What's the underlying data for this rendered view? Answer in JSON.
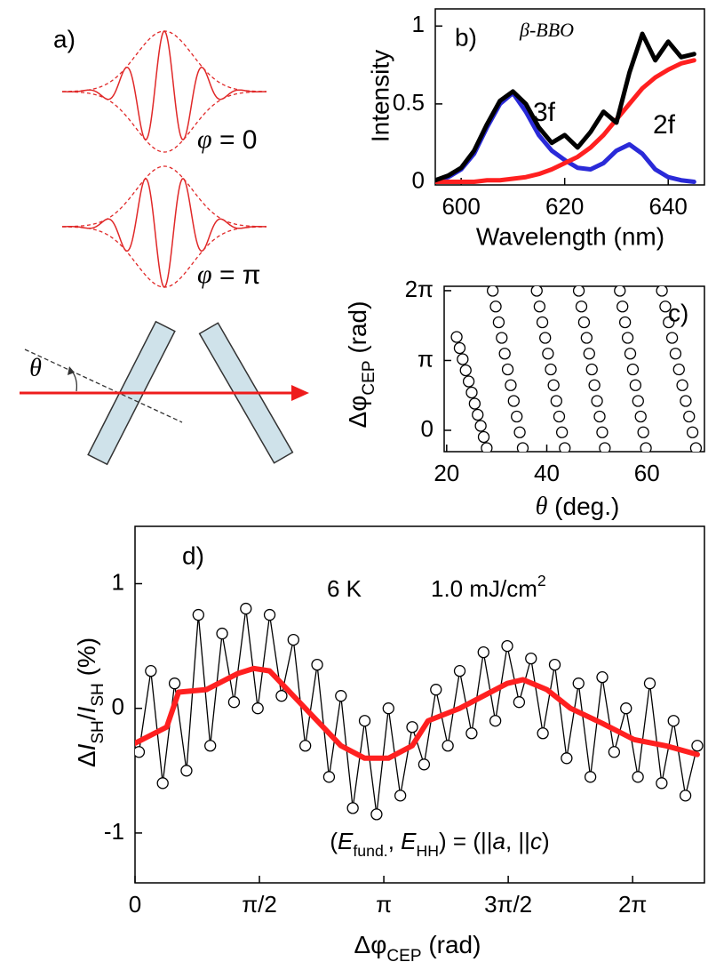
{
  "panel_a": {
    "label": "a)",
    "phase_labels": [
      [
        "φ",
        " = 0"
      ],
      [
        "φ",
        " = π"
      ]
    ],
    "angle_label": "θ"
  },
  "chart_data": [
    {
      "type": "line",
      "panel_label": "b)",
      "annotation": "β-BBO",
      "ylabel": "Intensity",
      "xlabel": "Wavelength (nm)",
      "xlim": [
        595,
        647
      ],
      "ylim": [
        -0.02,
        1.11
      ],
      "xticks": [
        600,
        620,
        640
      ],
      "yticks": [
        0,
        0.5,
        1
      ],
      "x": [
        595,
        597.5,
        600,
        602.5,
        605,
        607.5,
        610,
        612.5,
        615,
        617.5,
        620,
        622.5,
        625,
        627.5,
        630,
        632.5,
        635,
        637.5,
        640,
        642.5,
        645
      ],
      "series": [
        {
          "name": "3f",
          "color": "#2a2ad8",
          "values": [
            0.01,
            0.03,
            0.08,
            0.18,
            0.35,
            0.5,
            0.57,
            0.45,
            0.3,
            0.2,
            0.14,
            0.09,
            0.08,
            0.12,
            0.2,
            0.24,
            0.18,
            0.08,
            0.03,
            0.01,
            0
          ]
        },
        {
          "name": "2f",
          "color": "#ff2020",
          "values": [
            0,
            0,
            0,
            0,
            0.01,
            0.01,
            0.02,
            0.03,
            0.05,
            0.08,
            0.12,
            0.16,
            0.22,
            0.3,
            0.4,
            0.5,
            0.6,
            0.67,
            0.72,
            0.76,
            0.78
          ]
        },
        {
          "color": "#000000",
          "values": [
            0.01,
            0.04,
            0.09,
            0.2,
            0.37,
            0.52,
            0.58,
            0.5,
            0.35,
            0.25,
            0.3,
            0.22,
            0.32,
            0.45,
            0.38,
            0.7,
            0.95,
            0.78,
            0.9,
            0.8,
            0.82
          ]
        }
      ]
    },
    {
      "type": "scatter",
      "panel_label": "c)",
      "xlabel": [
        "θ",
        " (deg.)"
      ],
      "ylabel": [
        "Δφ",
        "CEP",
        " (rad)"
      ],
      "xlim": [
        19.5,
        71.5
      ],
      "ylim": [
        -0.96,
        6.48
      ],
      "xticks": [
        20,
        40,
        60
      ],
      "yticks": [
        0,
        {
          "value": 3.1416,
          "label": "π"
        },
        {
          "value": 6.2832,
          "label": "2π"
        }
      ],
      "series": [
        {
          "color": "#000000",
          "x": [
            22,
            22.6,
            23.2,
            23.8,
            24.4,
            25,
            25.6,
            26.2,
            26.8,
            27.4,
            28,
            29.2,
            29.8,
            30.4,
            31,
            31.6,
            32.2,
            32.8,
            33.4,
            34,
            34.6,
            35.2,
            38,
            38.56,
            39.12,
            39.68,
            40.24,
            40.8,
            41.36,
            41.92,
            42.48,
            43.04,
            43.6,
            46.4,
            46.92,
            47.44,
            47.96,
            48.48,
            49,
            49.52,
            50.04,
            50.56,
            51.08,
            51.6,
            54.6,
            55.12,
            55.64,
            56.16,
            56.68,
            57.2,
            57.72,
            58.24,
            58.76,
            59.28,
            59.8,
            63,
            63.68,
            64.36,
            65.04,
            65.72,
            66.4,
            67.08,
            67.76,
            68.44,
            69.12,
            69.8
          ],
          "values": [
            4.2,
            3.7,
            3.2,
            2.7,
            2.2,
            1.7,
            1.2,
            0.7,
            0.2,
            -0.3,
            -0.8,
            6.28,
            5.57,
            4.86,
            4.16,
            3.45,
            2.74,
            2.03,
            1.32,
            0.62,
            -0.09,
            -0.8,
            6.28,
            5.57,
            4.86,
            4.16,
            3.45,
            2.74,
            2.03,
            1.32,
            0.62,
            -0.09,
            -0.8,
            6.28,
            5.57,
            4.86,
            4.16,
            3.45,
            2.74,
            2.03,
            1.32,
            0.62,
            -0.09,
            -0.8,
            6.28,
            5.57,
            4.86,
            4.16,
            3.45,
            2.74,
            2.03,
            1.32,
            0.62,
            -0.09,
            -0.8,
            6.28,
            5.57,
            4.86,
            4.16,
            3.45,
            2.74,
            2.03,
            1.32,
            0.62,
            -0.09,
            -0.8
          ]
        }
      ]
    },
    {
      "type": "line",
      "panel_label": "d)",
      "temperature": "6 K",
      "fluence": [
        "1.0 mJ/cm",
        "2"
      ],
      "annotation": [
        "(",
        "E",
        "fund.",
        ", ",
        "E",
        "HH",
        ") = (||",
        "a",
        ", ||",
        "c",
        ")"
      ],
      "xlabel": [
        "Δφ",
        "CEP",
        " (rad)"
      ],
      "ylabel": [
        "Δ",
        "I",
        "SH",
        "/",
        "I",
        "SH",
        " (%)"
      ],
      "xlim": [
        0,
        7.19
      ],
      "ylim": [
        -1.4,
        1.46
      ],
      "xticks": [
        0,
        {
          "value": 1.5708,
          "label": "π/2"
        },
        {
          "value": 3.1416,
          "label": "π"
        },
        {
          "value": 4.7124,
          "label": "3π/2"
        },
        {
          "value": 6.2832,
          "label": "2π"
        }
      ],
      "yticks": [
        -1,
        0,
        1
      ],
      "series": [
        {
          "color": "#000000",
          "marker": "circle",
          "x": [
            0.05,
            0.2,
            0.35,
            0.5,
            0.65,
            0.8,
            0.95,
            1.1,
            1.25,
            1.4,
            1.55,
            1.7,
            1.85,
            2,
            2.15,
            2.3,
            2.45,
            2.6,
            2.75,
            2.9,
            3.05,
            3.2,
            3.35,
            3.5,
            3.65,
            3.8,
            3.95,
            4.1,
            4.25,
            4.4,
            4.55,
            4.7,
            4.85,
            5,
            5.15,
            5.3,
            5.45,
            5.6,
            5.75,
            5.9,
            6.05,
            6.2,
            6.35,
            6.5,
            6.65,
            6.8,
            6.95,
            7.1
          ],
          "values": [
            -0.35,
            0.3,
            -0.6,
            0.2,
            -0.5,
            0.75,
            -0.3,
            0.6,
            0.05,
            0.8,
            0.0,
            0.75,
            0.1,
            0.55,
            -0.3,
            0.35,
            -0.55,
            0.1,
            -0.8,
            -0.1,
            -0.85,
            0.0,
            -0.7,
            -0.15,
            -0.45,
            0.15,
            -0.3,
            0.3,
            -0.2,
            0.45,
            -0.1,
            0.5,
            0.05,
            0.4,
            -0.2,
            0.35,
            -0.4,
            0.2,
            -0.55,
            0.25,
            -0.35,
            0.0,
            -0.55,
            0.2,
            -0.6,
            -0.1,
            -0.7,
            -0.3
          ]
        },
        {
          "color": "#ff2020",
          "x": [
            0,
            0.4,
            0.55,
            0.9,
            1.3,
            1.5,
            1.7,
            2.0,
            2.3,
            2.6,
            2.9,
            3.2,
            3.5,
            3.7,
            4.1,
            4.4,
            4.7,
            4.9,
            5.2,
            5.5,
            5.9,
            6.3,
            6.7,
            7.1
          ],
          "values": [
            -0.28,
            -0.15,
            0.13,
            0.15,
            0.28,
            0.32,
            0.3,
            0.1,
            -0.1,
            -0.3,
            -0.4,
            -0.4,
            -0.3,
            -0.1,
            0.0,
            0.1,
            0.2,
            0.23,
            0.15,
            0.0,
            -0.12,
            -0.25,
            -0.3,
            -0.37
          ]
        }
      ]
    }
  ]
}
